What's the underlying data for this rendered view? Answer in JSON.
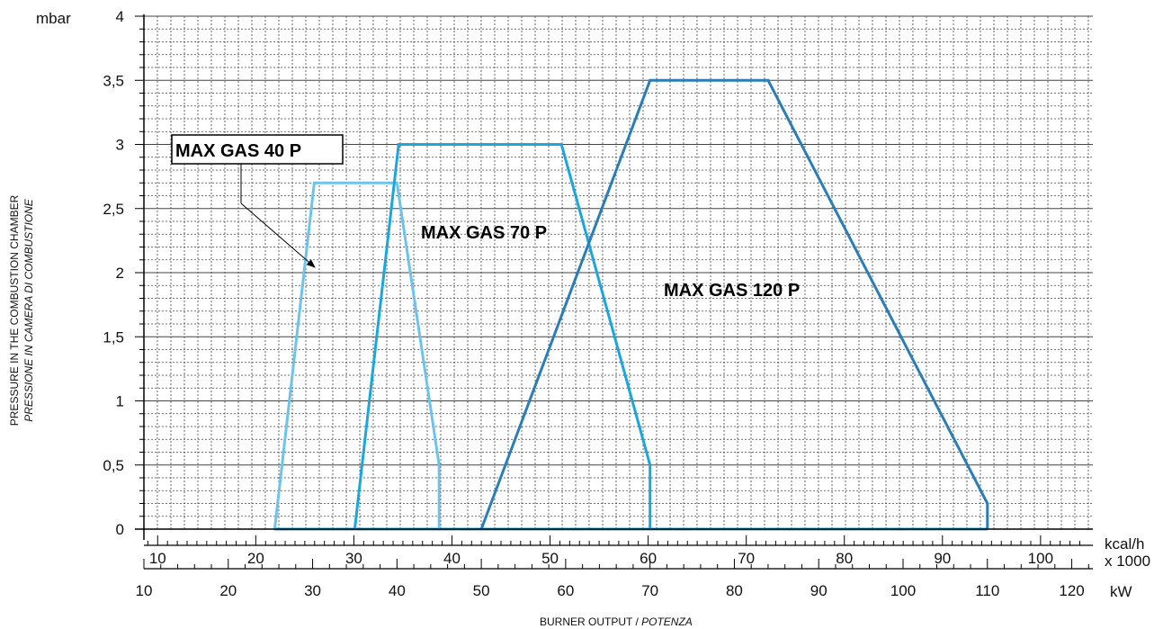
{
  "chart_data": {
    "type": "line",
    "y_unit": "mbar",
    "y_ticks": [
      "0",
      "0,5",
      "1",
      "1,5",
      "2",
      "2,5",
      "3",
      "3,5",
      "4"
    ],
    "y_tick_values": [
      0,
      0.5,
      1,
      1.5,
      2,
      2.5,
      3,
      3.5,
      4
    ],
    "ylim": [
      0,
      4
    ],
    "kw_ticks": [
      "10",
      "20",
      "30",
      "40",
      "50",
      "60",
      "70",
      "80",
      "90",
      "100",
      "110",
      "120"
    ],
    "kw_tick_values": [
      10,
      20,
      30,
      40,
      50,
      60,
      70,
      80,
      90,
      100,
      110,
      120
    ],
    "kw_unit": "kW",
    "kcal_ticks": [
      "10",
      "20",
      "30",
      "40",
      "50",
      "60",
      "70",
      "80",
      "90",
      "100"
    ],
    "kcal_tick_values": [
      10,
      20,
      30,
      40,
      50,
      60,
      70,
      80,
      90,
      100
    ],
    "kcal_unit_line1": "kcal/h",
    "kcal_unit_line2": "x 1000",
    "xlim": [
      10,
      122.5
    ],
    "ylabel_line1": "PRESSURE IN THE COMBUSTION CHAMBER",
    "ylabel_line2": "PRESSIONE IN CAMERA DI COMBUSTIONE",
    "xlabel_main": "BURNER OUTPUT / ",
    "xlabel_italic": "POTENZA",
    "grid": true,
    "series": [
      {
        "name": "MAX GAS 40 P",
        "color": "#6cc4ea",
        "x_kw": [
          25.5,
          30.2,
          40.0,
          45.0,
          45.0
        ],
        "y": [
          0,
          2.7,
          2.7,
          0.5,
          0
        ]
      },
      {
        "name": "MAX GAS 70 P",
        "color": "#1ba6dc",
        "x_kw": [
          35.0,
          40.2,
          59.5,
          70.0,
          70.0
        ],
        "y": [
          0,
          3.0,
          3.0,
          0.5,
          0
        ]
      },
      {
        "name": "MAX GAS 120 P",
        "color": "#2a7db7",
        "x_kw": [
          50.0,
          70.0,
          84.0,
          110.0,
          110.0
        ],
        "y": [
          0,
          3.5,
          3.5,
          0.2,
          0
        ]
      }
    ],
    "baseline_color": "#1ba6dc"
  }
}
